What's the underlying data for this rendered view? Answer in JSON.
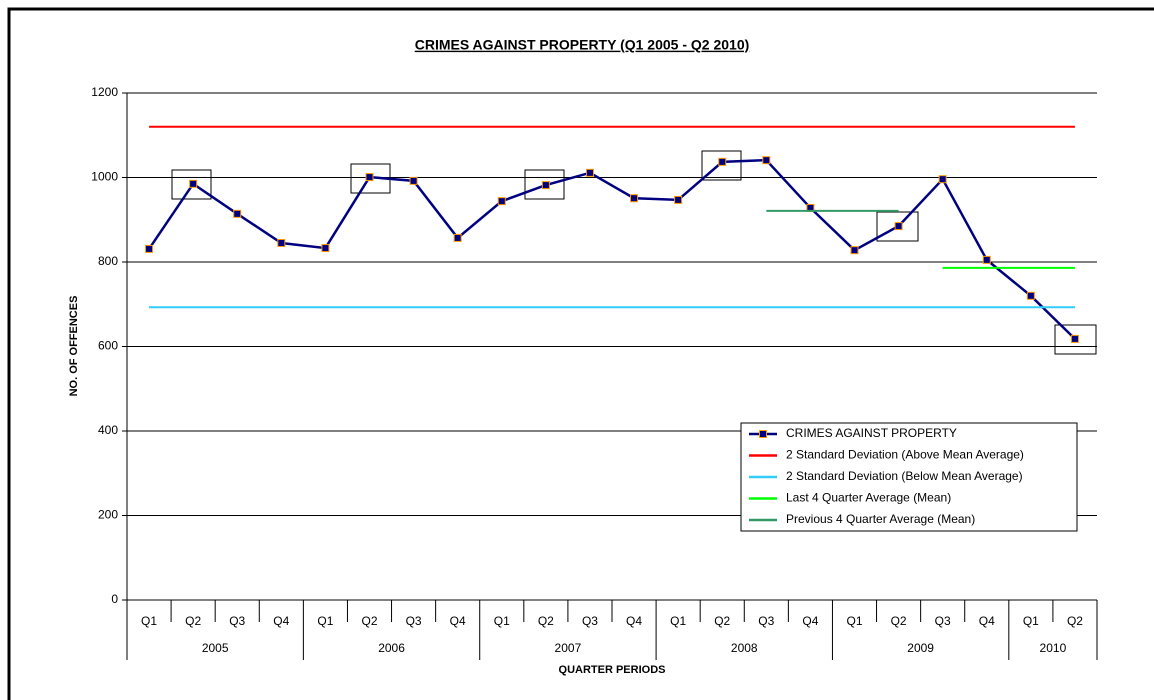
{
  "chart_data": {
    "type": "line",
    "title": "CRIMES AGAINST PROPERTY (Q1 2005 - Q2 2010)",
    "x_label": "QUARTER PERIODS",
    "y_label": "NO. OF OFFENCES",
    "categories": [
      "Q1",
      "Q2",
      "Q3",
      "Q4",
      "Q1",
      "Q2",
      "Q3",
      "Q4",
      "Q1",
      "Q2",
      "Q3",
      "Q4",
      "Q1",
      "Q2",
      "Q3",
      "Q4",
      "Q1",
      "Q2",
      "Q3",
      "Q4",
      "Q1",
      "Q2"
    ],
    "category_groups": [
      "2005",
      "2005",
      "2005",
      "2005",
      "2006",
      "2006",
      "2006",
      "2006",
      "2007",
      "2007",
      "2007",
      "2007",
      "2008",
      "2008",
      "2008",
      "2008",
      "2009",
      "2009",
      "2009",
      "2009",
      "2010",
      "2010"
    ],
    "series": [
      {
        "name": "CRIMES AGAINST PROPERTY",
        "color": "#000080",
        "marker": true,
        "values": [
          831,
          985,
          914,
          845,
          833,
          1001,
          992,
          857,
          944,
          982,
          1011,
          951,
          947,
          1037,
          1041,
          928,
          828,
          885,
          996,
          805,
          720,
          618
        ]
      },
      {
        "name": "2 Standard Deviation (Above Mean Average)",
        "color": "#ff0000",
        "values": [
          1120,
          1120,
          1120,
          1120,
          1120,
          1120,
          1120,
          1120,
          1120,
          1120,
          1120,
          1120,
          1120,
          1120,
          1120,
          1120,
          1120,
          1120,
          1120,
          1120,
          1120,
          1120
        ]
      },
      {
        "name": "2 Standard Deviation (Below Mean Average)",
        "color": "#33ccff",
        "values": [
          693,
          693,
          693,
          693,
          693,
          693,
          693,
          693,
          693,
          693,
          693,
          693,
          693,
          693,
          693,
          693,
          693,
          693,
          693,
          693,
          693,
          693
        ]
      },
      {
        "name": "Last 4 Quarter Average (Mean)",
        "color": "#00ff00",
        "values": [
          null,
          null,
          null,
          null,
          null,
          null,
          null,
          null,
          null,
          null,
          null,
          null,
          null,
          null,
          null,
          null,
          null,
          null,
          786,
          786,
          786,
          786
        ]
      },
      {
        "name": "Previous 4 Quarter Average (Mean)",
        "color": "#339966",
        "values": [
          null,
          null,
          null,
          null,
          null,
          null,
          null,
          null,
          null,
          null,
          null,
          null,
          null,
          null,
          921,
          921,
          921,
          921,
          null,
          null,
          null,
          null
        ]
      }
    ],
    "ylim": [
      0,
      1200
    ],
    "yticks": [
      0,
      200,
      400,
      600,
      800,
      1000,
      1200
    ],
    "grid": true
  }
}
